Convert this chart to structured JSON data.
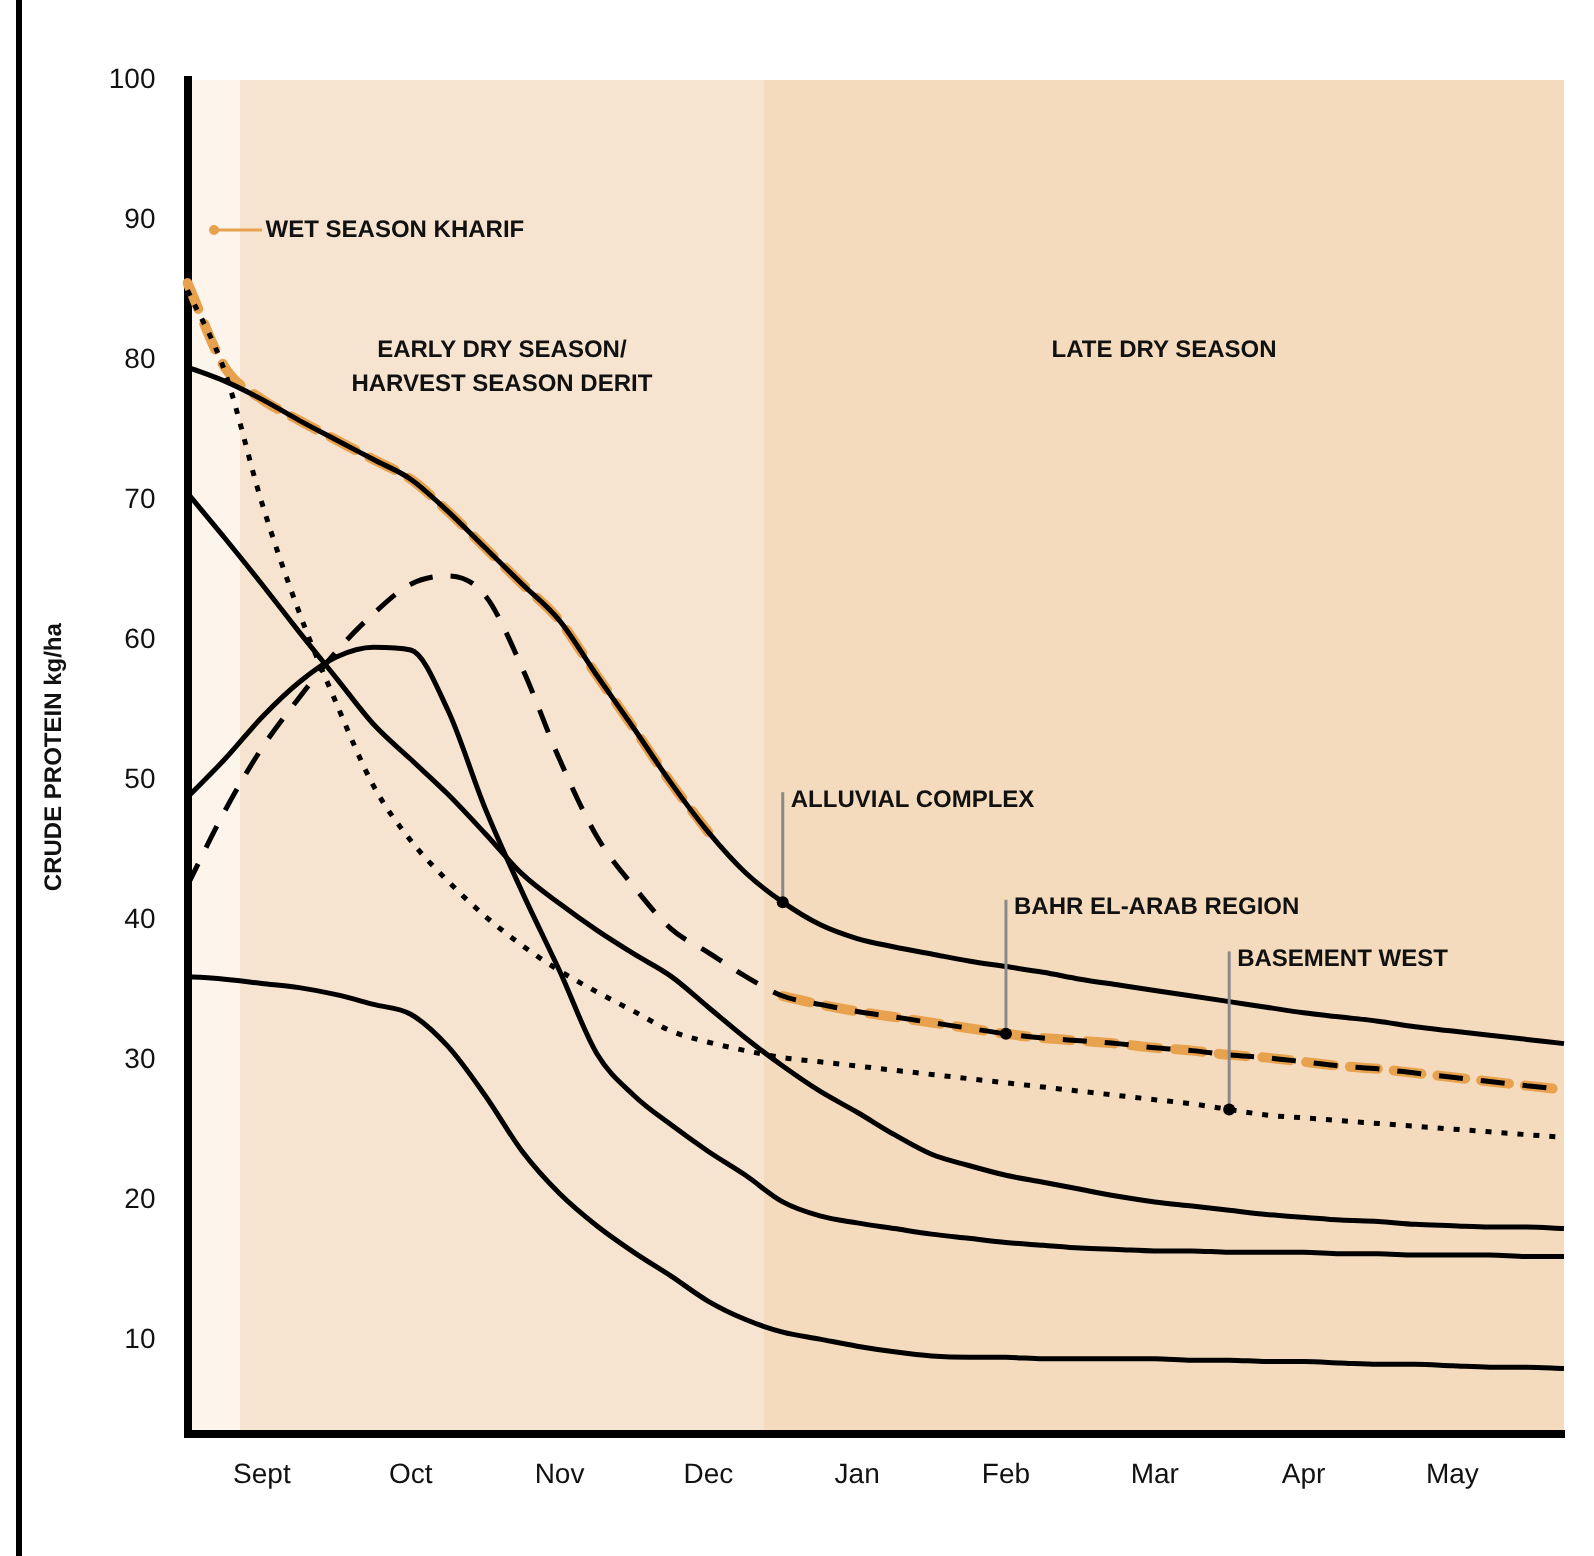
{
  "chart_data": {
    "type": "line",
    "ylabel": "CRUDE PROTEIN kg/ha",
    "categories": [
      null,
      null,
      "Sept",
      null,
      null,
      null,
      "Oct",
      null,
      null,
      null,
      "Nov",
      null,
      null,
      null,
      "Dec",
      null,
      null,
      null,
      "Jan",
      null,
      null,
      null,
      "Feb",
      null,
      null,
      null,
      "Mar",
      null,
      null,
      null,
      "Apr",
      null,
      null,
      null,
      "May",
      null,
      null,
      null
    ],
    "ylim": [
      3.3,
      100
    ],
    "yticks": [
      10,
      20,
      30,
      40,
      50,
      60,
      70,
      80,
      90,
      100
    ],
    "grid": false,
    "legend": false,
    "marker": "none",
    "annotations": [
      "WET SEASON KHARIF",
      "EARLY DRY SEASON/\nHARVEST SEASON DERIT",
      "LATE DRY SEASON"
    ],
    "series": [
      {
        "name": "ALLUVIAL COMPLEX",
        "color": "#000000",
        "line_style": "solid",
        "values": [
          79.5,
          78.5,
          77.2,
          75.7,
          74.3,
          72.9,
          71.5,
          69.2,
          66.6,
          64,
          61.4,
          57.5,
          53.7,
          49.8,
          46.3,
          43.4,
          41.3,
          39.7,
          38.7,
          38.1,
          37.6,
          37.1,
          36.7,
          36.3,
          35.8,
          35.4,
          35,
          34.6,
          34.2,
          33.8,
          33.4,
          33.1,
          32.8,
          32.4,
          32.1,
          31.8,
          31.5,
          31.2
        ]
      },
      {
        "name": "BAHR EL-ARAB REGION",
        "color": "#000000",
        "line_style": "dashed",
        "values": [
          42.5,
          47.8,
          52.3,
          55.9,
          59.2,
          61.9,
          64,
          64.6,
          63.2,
          58,
          51.5,
          46,
          42.4,
          39.4,
          37.7,
          36,
          34.6,
          34,
          33.5,
          33.1,
          32.7,
          32.3,
          31.9,
          31.6,
          31.4,
          31.2,
          30.9,
          30.7,
          30.4,
          30.2,
          29.9,
          29.6,
          29.4,
          29.1,
          28.8,
          28.5,
          28.2,
          27.9
        ]
      },
      {
        "name": "BASEMENT WEST",
        "color": "#000000",
        "line_style": "dotted",
        "values": [
          85,
          79.2,
          69.8,
          62,
          55.5,
          49.6,
          45.7,
          42.8,
          40.3,
          38.2,
          36.4,
          34.9,
          33.5,
          32.1,
          31.3,
          30.7,
          30.2,
          29.9,
          29.6,
          29.3,
          29,
          28.7,
          28.4,
          28.1,
          27.8,
          27.5,
          27.2,
          26.9,
          26.5,
          26.1,
          25.9,
          25.7,
          25.5,
          25.3,
          25.1,
          24.9,
          24.7,
          24.5
        ]
      },
      {
        "color": "#000000",
        "line_style": "solid",
        "values": [
          70.5,
          67.3,
          64,
          60.6,
          57.3,
          54,
          51.5,
          49,
          46.2,
          43.3,
          41.2,
          39.3,
          37.6,
          36,
          33.8,
          31.6,
          29.6,
          27.8,
          26.3,
          24.7,
          23.3,
          22.5,
          21.8,
          21.3,
          20.8,
          20.3,
          19.9,
          19.6,
          19.3,
          19,
          18.8,
          18.6,
          18.5,
          18.3,
          18.2,
          18.1,
          18.1,
          18
        ]
      },
      {
        "color": "#000000",
        "line_style": "solid",
        "values": [
          48.8,
          51.5,
          54.5,
          57,
          58.8,
          59.5,
          59.3,
          55,
          48,
          42,
          36.4,
          30.5,
          27.5,
          25.4,
          23.5,
          21.8,
          19.9,
          18.9,
          18.4,
          18,
          17.6,
          17.3,
          17,
          16.8,
          16.6,
          16.5,
          16.4,
          16.4,
          16.3,
          16.3,
          16.3,
          16.2,
          16.2,
          16.1,
          16.1,
          16.1,
          16,
          16
        ]
      },
      {
        "color": "#000000",
        "line_style": "solid",
        "values": [
          36,
          35.8,
          35.5,
          35.2,
          34.7,
          34,
          33.3,
          31,
          27.5,
          23.5,
          20.5,
          18.2,
          16.3,
          14.6,
          12.8,
          11.5,
          10.6,
          10.1,
          9.6,
          9.2,
          8.9,
          8.8,
          8.8,
          8.7,
          8.7,
          8.7,
          8.7,
          8.6,
          8.6,
          8.5,
          8.5,
          8.4,
          8.3,
          8.3,
          8.2,
          8.1,
          8.1,
          8
        ]
      },
      {
        "color": "#e8a24e",
        "line_style": "dashed",
        "values": [
          85.5,
          79.5,
          77.2,
          75.7,
          74.3,
          72.9,
          71.5,
          69.2,
          66.6,
          64,
          61.4,
          57.5,
          53.7,
          49.8,
          46.3,
          null,
          34.6,
          34,
          33.5,
          33.1,
          32.7,
          32.3,
          31.9,
          31.6,
          31.4,
          31.2,
          30.9,
          30.7,
          30.4,
          30.2,
          29.9,
          29.6,
          29.4,
          29.1,
          28.8,
          28.5,
          28.2,
          27.9
        ]
      }
    ]
  }
}
